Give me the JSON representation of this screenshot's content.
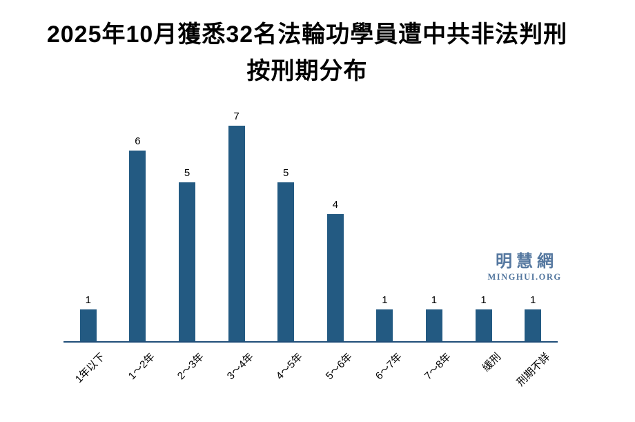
{
  "title": {
    "line1": "2025年10月獲悉32名法輪功學員遭中共非法判刑",
    "line2": "按刑期分布"
  },
  "watermark": {
    "site_name": "明慧網",
    "site_url": "MINGHUI.ORG",
    "color": "#54779f"
  },
  "chart_data": {
    "type": "bar",
    "title": "2025年10月獲悉32名法輪功學員遭中共非法判刑 按刑期分布",
    "categories": [
      "1年以下",
      "1～2年",
      "2～3年",
      "3～4年",
      "4～5年",
      "5～6年",
      "6～7年",
      "7～8年",
      "緩刑",
      "刑期不詳"
    ],
    "values": [
      1,
      6,
      5,
      7,
      5,
      4,
      1,
      1,
      1,
      1
    ],
    "xlabel": "",
    "ylabel": "",
    "ylim": [
      0,
      7
    ],
    "bar_color": "#235a82",
    "axis_color": "#1f4e79",
    "value_label_color": "#000000",
    "data_labels": true,
    "grid": false,
    "legend": false
  }
}
